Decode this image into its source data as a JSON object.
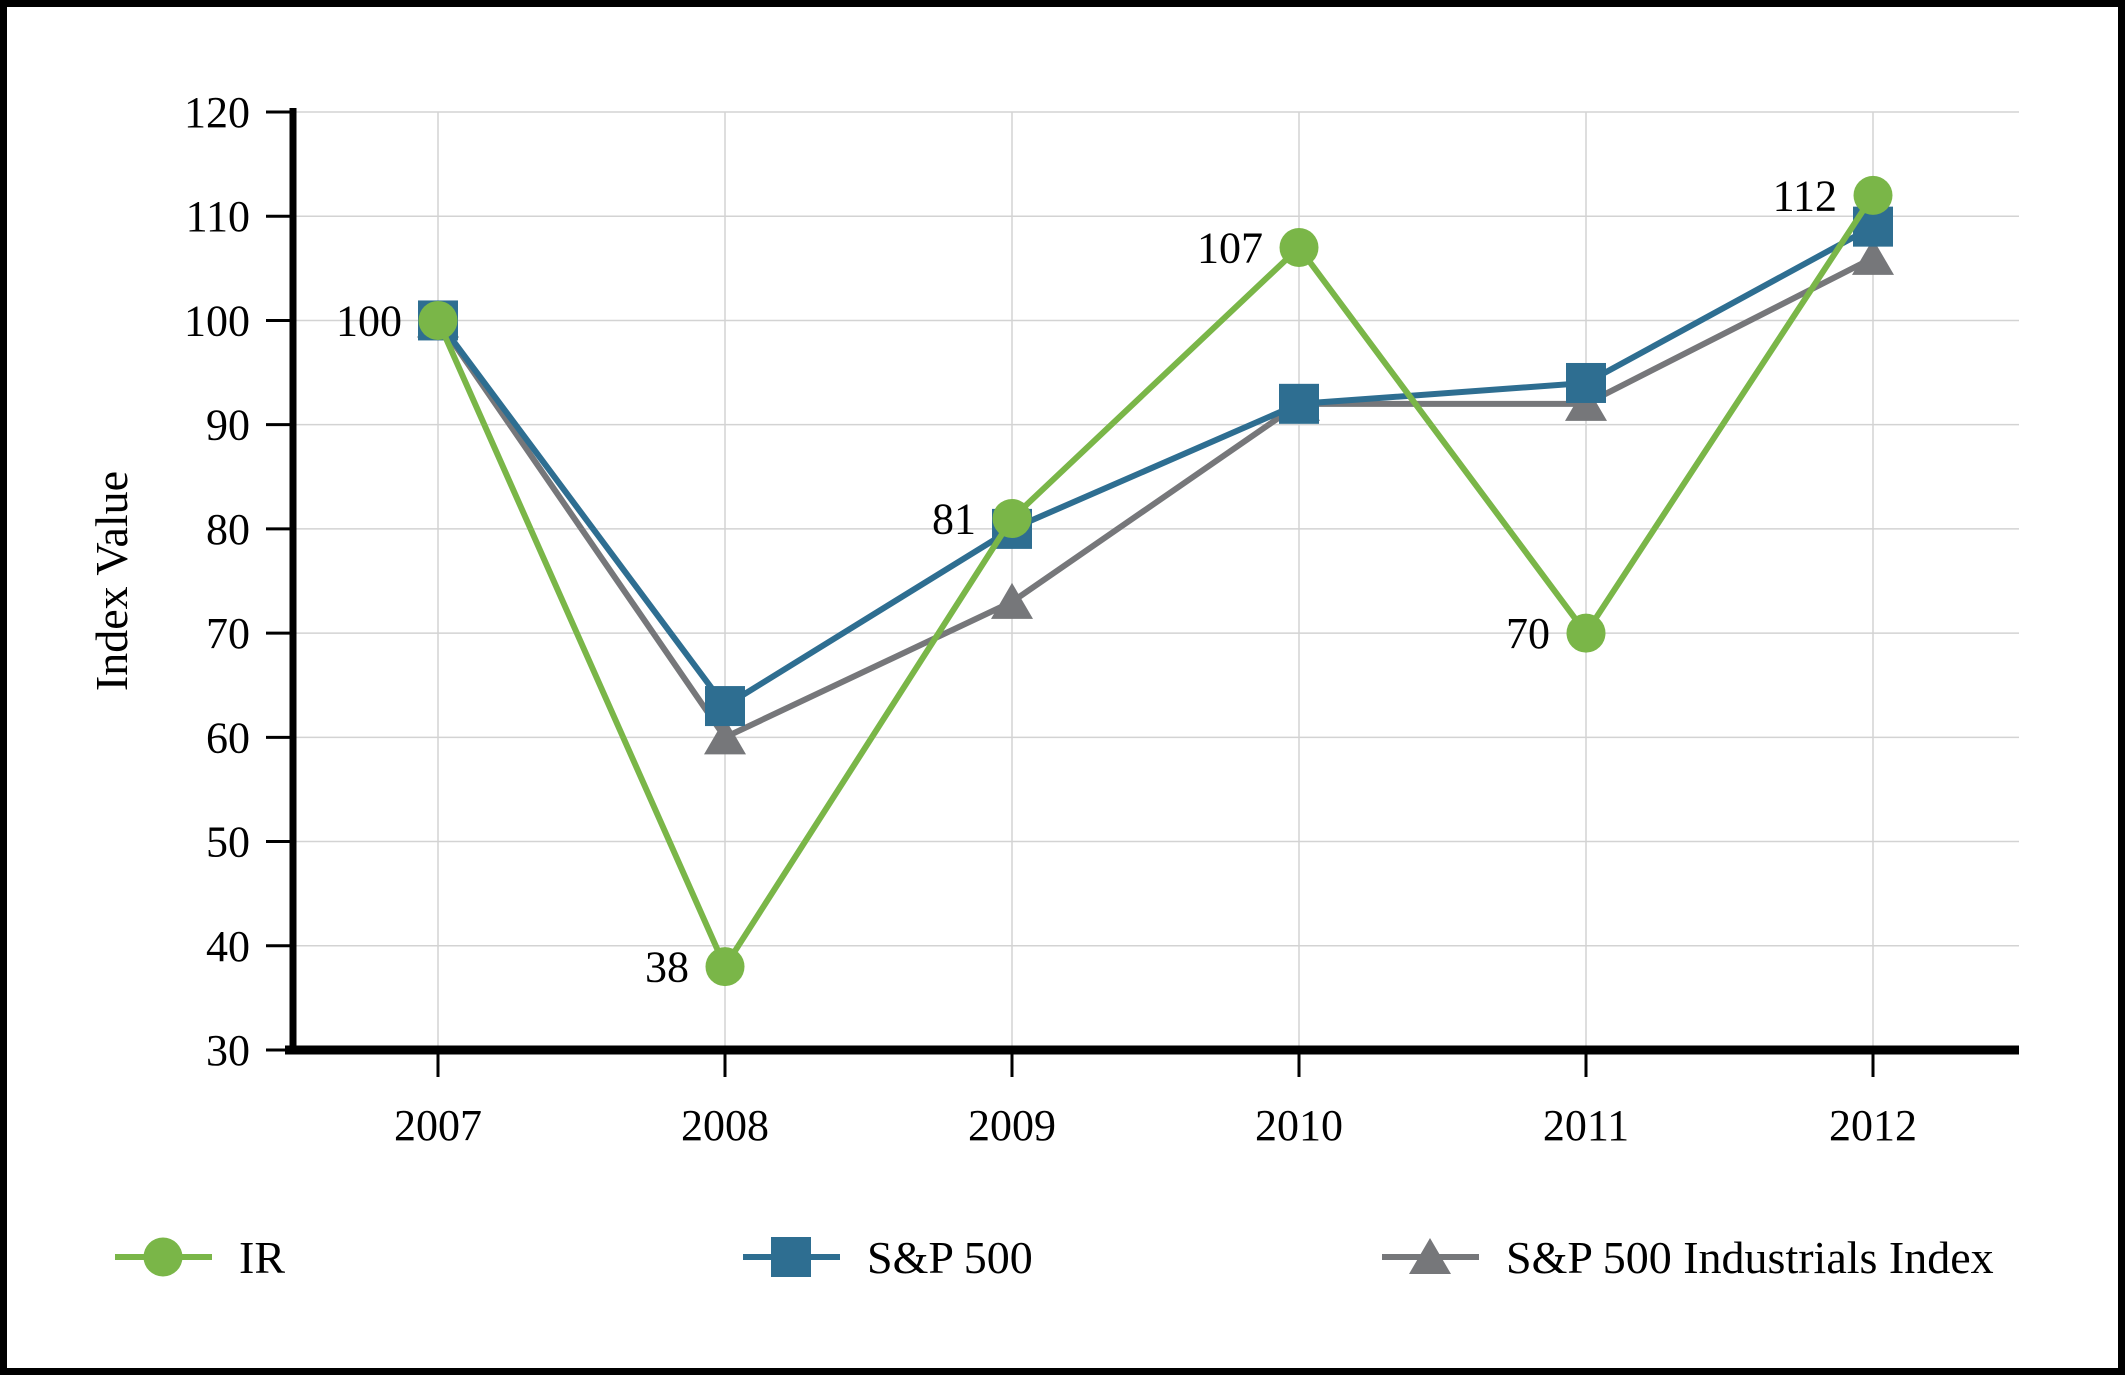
{
  "chart_data": {
    "type": "line",
    "title": "",
    "ylabel": "Index Value",
    "xlabel": "",
    "x_categories": [
      "2007",
      "2008",
      "2009",
      "2010",
      "2011",
      "2012"
    ],
    "y_ticks": [
      "120",
      "110",
      "100",
      "90",
      "80",
      "70",
      "60",
      "50",
      "40",
      "30"
    ],
    "ylim": [
      30,
      120
    ],
    "grid": true,
    "legend_position": "bottom",
    "axis_color": "#000000",
    "grid_color": "#d3d3d3",
    "series": [
      {
        "name": "IR",
        "marker": "circle",
        "color": "#7ab648",
        "values": [
          100,
          38,
          81,
          107,
          70,
          112
        ],
        "data_labels": [
          "100",
          "38",
          "81",
          "107",
          "70",
          "112"
        ]
      },
      {
        "name": "S&P 500",
        "marker": "square",
        "color": "#2e6e91",
        "values": [
          100,
          63,
          80,
          92,
          94,
          109
        ],
        "data_labels": null
      },
      {
        "name": "S&P 500 Industrials Index",
        "marker": "triangle",
        "color": "#76777a",
        "values": [
          100,
          60,
          73,
          92,
          92,
          106
        ],
        "data_labels": null
      }
    ]
  }
}
